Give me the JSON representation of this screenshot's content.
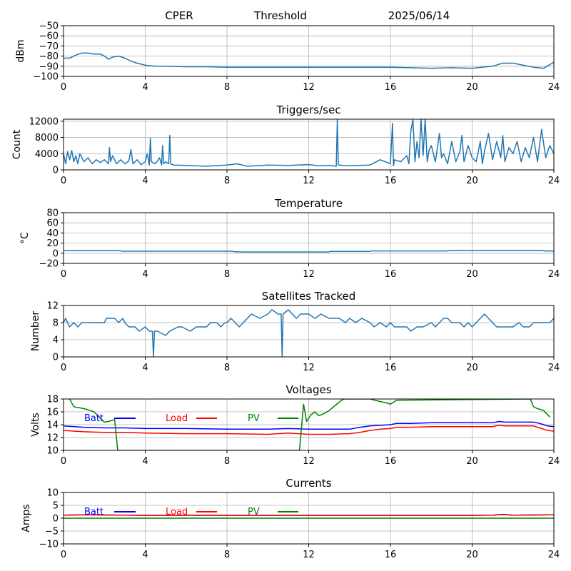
{
  "header": {
    "site": "CPER",
    "mode": "Threshold",
    "date": "2025/06/14"
  },
  "colors": {
    "series": "#1f77b4",
    "grid": "#b0b0b0",
    "batt": "#0000ff",
    "load": "#ff0000",
    "pv": "#008000"
  },
  "chart_data": [
    {
      "id": "signal",
      "type": "line",
      "title": "",
      "xlabel": "",
      "ylabel": "dBm",
      "xlim": [
        0,
        24
      ],
      "ylim": [
        -100,
        -50
      ],
      "xticks": [
        0,
        4,
        8,
        12,
        16,
        20,
        24
      ],
      "yticks": [
        -50,
        -60,
        -70,
        -80,
        -90,
        -100
      ],
      "grid": true,
      "series": [
        {
          "color": "#1f77b4",
          "x": [
            0,
            0.3,
            0.6,
            0.9,
            1.2,
            1.5,
            1.8,
            2.0,
            2.2,
            2.4,
            2.7,
            3.0,
            3.3,
            3.6,
            4.0,
            4.5,
            5,
            6,
            7,
            8,
            10,
            12,
            14,
            16,
            17,
            18,
            19,
            20,
            21,
            21.5,
            22,
            22.5,
            23,
            23.5,
            24
          ],
          "y": [
            -82,
            -82,
            -79,
            -77,
            -77,
            -78,
            -78,
            -80,
            -83,
            -81,
            -80,
            -82,
            -85,
            -87,
            -89,
            -90,
            -90,
            -90.5,
            -90.5,
            -91,
            -91,
            -91,
            -91,
            -91,
            -91.5,
            -92,
            -91.5,
            -92,
            -90,
            -87,
            -87,
            -89,
            -91,
            -92,
            -86
          ]
        }
      ]
    },
    {
      "id": "triggers",
      "type": "line",
      "title": "Triggers/sec",
      "xlabel": "",
      "ylabel": "Count",
      "xlim": [
        0,
        24
      ],
      "ylim": [
        0,
        12500
      ],
      "xticks": [
        0,
        4,
        8,
        12,
        16,
        20,
        24
      ],
      "yticks": [
        0,
        4000,
        8000,
        12000
      ],
      "grid": true,
      "series": [
        {
          "color": "#1f77b4",
          "x": [
            0,
            0.1,
            0.2,
            0.3,
            0.4,
            0.5,
            0.6,
            0.7,
            0.8,
            1.0,
            1.2,
            1.4,
            1.6,
            1.8,
            2.0,
            2.2,
            2.25,
            2.3,
            2.4,
            2.6,
            2.8,
            3.0,
            3.2,
            3.3,
            3.4,
            3.6,
            3.8,
            4.0,
            4.1,
            4.2,
            4.25,
            4.3,
            4.5,
            4.7,
            4.8,
            4.85,
            4.9,
            5.0,
            5.15,
            5.2,
            5.25,
            5.4,
            6,
            7,
            8,
            8.5,
            9,
            10,
            11,
            12,
            12.5,
            13,
            13.35,
            13.4,
            13.45,
            14,
            15,
            15.5,
            16,
            16.1,
            16.15,
            16.2,
            16.5,
            16.8,
            16.9,
            17.0,
            17.1,
            17.2,
            17.3,
            17.4,
            17.5,
            17.6,
            17.7,
            17.8,
            17.9,
            18.0,
            18.2,
            18.4,
            18.5,
            18.6,
            18.8,
            19.0,
            19.2,
            19.4,
            19.5,
            19.6,
            19.8,
            20.0,
            20.2,
            20.4,
            20.5,
            20.6,
            20.8,
            21.0,
            21.2,
            21.4,
            21.5,
            21.6,
            21.8,
            22.0,
            22.2,
            22.4,
            22.6,
            22.8,
            23.0,
            23.2,
            23.4,
            23.6,
            23.8,
            24
          ],
          "y": [
            4000,
            1500,
            4500,
            2500,
            4800,
            2000,
            3500,
            1500,
            4000,
            2000,
            3000,
            1500,
            2500,
            1800,
            2500,
            1500,
            5500,
            2000,
            3500,
            1500,
            2500,
            1500,
            2200,
            5000,
            1500,
            2500,
            1300,
            2000,
            4000,
            1200,
            7800,
            2000,
            1500,
            3000,
            1200,
            6000,
            1500,
            2000,
            1500,
            8500,
            1500,
            1200,
            1100,
            900,
            1200,
            1500,
            900,
            1200,
            1100,
            1300,
            1000,
            1100,
            900,
            12500,
            1200,
            1000,
            1200,
            2500,
            1500,
            11500,
            1000,
            2500,
            2000,
            3500,
            1500,
            9500,
            12500,
            2000,
            7000,
            3000,
            12500,
            3500,
            12500,
            2000,
            5000,
            6000,
            2000,
            9000,
            3000,
            4000,
            1500,
            7000,
            2000,
            4500,
            8500,
            2000,
            6000,
            3000,
            2000,
            7000,
            1500,
            4500,
            9000,
            2500,
            7000,
            3000,
            8500,
            2000,
            5500,
            4000,
            7000,
            2000,
            5500,
            3000,
            8000,
            2000,
            10000,
            3000,
            6000,
            4000
          ]
        }
      ]
    },
    {
      "id": "temperature",
      "type": "line",
      "title": "Temperature",
      "xlabel": "",
      "ylabel": "°C",
      "xlim": [
        0,
        24
      ],
      "ylim": [
        -20,
        80
      ],
      "xticks": [
        0,
        4,
        8,
        12,
        16,
        20,
        24
      ],
      "yticks": [
        -20,
        0,
        20,
        40,
        60,
        80
      ],
      "grid": true,
      "series": [
        {
          "color": "#1f77b4",
          "x": [
            0,
            2.8,
            2.85,
            8.3,
            8.35,
            8.6,
            8.65,
            13.0,
            13.05,
            15.0,
            15.05,
            18.8,
            18.85,
            23.5,
            23.55,
            24
          ],
          "y": [
            5,
            5,
            4,
            4,
            3,
            3,
            2.5,
            2.5,
            3.5,
            3.5,
            4.5,
            4.5,
            5.5,
            5.5,
            4.5,
            4.5
          ]
        }
      ]
    },
    {
      "id": "satellites",
      "type": "line",
      "title": "Satellites Tracked",
      "xlabel": "",
      "ylabel": "Number",
      "xlim": [
        0,
        24
      ],
      "ylim": [
        0,
        12
      ],
      "xticks": [
        0,
        4,
        8,
        12,
        16,
        20,
        24
      ],
      "yticks": [
        0,
        4,
        8,
        12
      ],
      "grid": true,
      "series": [
        {
          "color": "#1f77b4",
          "x": [
            0,
            0.1,
            0.2,
            0.3,
            0.5,
            0.7,
            0.9,
            1.2,
            2.0,
            2.1,
            2.5,
            2.7,
            2.9,
            3.0,
            3.2,
            3.5,
            3.7,
            4.0,
            4.2,
            4.35,
            4.4,
            4.45,
            4.6,
            5.0,
            5.2,
            5.6,
            5.8,
            6.2,
            6.5,
            6.8,
            7.0,
            7.2,
            7.5,
            7.7,
            7.9,
            8.0,
            8.2,
            8.4,
            8.6,
            8.8,
            9.0,
            9.2,
            9.6,
            10.0,
            10.2,
            10.5,
            10.65,
            10.7,
            10.75,
            11.0,
            11.2,
            11.4,
            11.6,
            12.0,
            12.3,
            12.6,
            13.0,
            13.5,
            13.8,
            14.0,
            14.3,
            14.6,
            15.0,
            15.2,
            15.5,
            15.8,
            16.0,
            16.2,
            16.6,
            16.8,
            17.0,
            17.3,
            17.6,
            18.0,
            18.2,
            18.4,
            18.6,
            18.8,
            19.0,
            19.2,
            19.4,
            19.6,
            19.8,
            20.0,
            20.2,
            20.4,
            20.6,
            20.8,
            21.0,
            21.2,
            21.5,
            22.0,
            22.3,
            22.5,
            22.8,
            23.0,
            23.2,
            23.5,
            23.8,
            24
          ],
          "y": [
            8,
            9,
            8,
            7,
            8,
            7,
            8,
            8,
            8,
            9,
            9,
            8,
            9,
            8,
            7,
            7,
            6,
            7,
            6,
            6,
            0,
            6,
            6,
            5,
            6,
            7,
            7,
            6,
            7,
            7,
            7,
            8,
            8,
            7,
            8,
            8,
            9,
            8,
            7,
            8,
            9,
            10,
            9,
            10,
            11,
            10,
            10,
            0,
            10,
            11,
            10,
            9,
            10,
            10,
            9,
            10,
            9,
            9,
            8,
            9,
            8,
            9,
            8,
            7,
            8,
            7,
            8,
            7,
            7,
            7,
            6,
            7,
            7,
            8,
            7,
            8,
            9,
            9,
            8,
            8,
            8,
            7,
            8,
            7,
            8,
            9,
            10,
            9,
            8,
            7,
            7,
            7,
            8,
            7,
            7,
            8,
            8,
            8,
            8,
            9
          ]
        }
      ]
    },
    {
      "id": "voltages",
      "type": "line",
      "title": "Voltages",
      "xlabel": "",
      "ylabel": "Volts",
      "xlim": [
        0,
        24
      ],
      "ylim": [
        10,
        18
      ],
      "xticks": [
        0,
        4,
        8,
        12,
        16,
        20,
        24
      ],
      "yticks": [
        10,
        12,
        14,
        16,
        18
      ],
      "grid": true,
      "legend": [
        "Batt",
        "Load",
        "PV"
      ],
      "series": [
        {
          "name": "Batt",
          "color": "#0000ff",
          "x": [
            0,
            1,
            2,
            3,
            4,
            6,
            8,
            10,
            11,
            12,
            13,
            14,
            14.5,
            15,
            15.5,
            16,
            16.3,
            17,
            18,
            20,
            21,
            21.3,
            21.6,
            22,
            22.5,
            23,
            23.3,
            23.7,
            24
          ],
          "y": [
            13.8,
            13.6,
            13.5,
            13.5,
            13.4,
            13.4,
            13.3,
            13.3,
            13.4,
            13.3,
            13.3,
            13.3,
            13.6,
            13.8,
            13.9,
            14.0,
            14.2,
            14.2,
            14.3,
            14.3,
            14.3,
            14.5,
            14.4,
            14.4,
            14.4,
            14.4,
            14.2,
            13.8,
            13.7
          ]
        },
        {
          "name": "Load",
          "color": "#ff0000",
          "x": [
            0,
            1,
            2,
            3,
            4,
            6,
            8,
            10,
            11,
            12,
            13,
            14,
            14.5,
            15,
            15.5,
            16,
            16.3,
            17,
            18,
            20,
            21,
            21.3,
            21.6,
            22,
            22.5,
            23,
            23.3,
            23.7,
            24
          ],
          "y": [
            13.1,
            12.9,
            12.8,
            12.8,
            12.7,
            12.6,
            12.6,
            12.5,
            12.7,
            12.5,
            12.5,
            12.6,
            12.8,
            13.1,
            13.3,
            13.4,
            13.6,
            13.6,
            13.7,
            13.7,
            13.7,
            13.9,
            13.8,
            13.8,
            13.8,
            13.8,
            13.5,
            13.1,
            13.0
          ]
        },
        {
          "name": "PV",
          "color": "#008000",
          "x": [
            0.3,
            0.5,
            1.0,
            1.5,
            1.8,
            2.0,
            2.2,
            2.5,
            2.65,
            11.55,
            11.75,
            11.9,
            12.1,
            12.3,
            12.5,
            12.8,
            13.0,
            13.3,
            13.6,
            13.75,
            15.0,
            15.5,
            15.8,
            16.0,
            16.3,
            22.85,
            23.0,
            23.2,
            23.5,
            23.8
          ],
          "y": [
            18,
            16.8,
            16.5,
            16.0,
            15.0,
            14.4,
            14.5,
            14.8,
            10,
            10,
            17.2,
            14.5,
            15.5,
            16.0,
            15.4,
            15.8,
            16.2,
            17.0,
            17.8,
            18,
            18,
            17.6,
            17.4,
            17.2,
            17.8,
            18,
            16.8,
            16.5,
            16.2,
            15.2
          ]
        }
      ]
    },
    {
      "id": "currents",
      "type": "line",
      "title": "Currents",
      "xlabel": "",
      "ylabel": "Amps",
      "xlim": [
        0,
        24
      ],
      "ylim": [
        -10,
        10
      ],
      "xticks": [
        0,
        4,
        8,
        12,
        16,
        20,
        24
      ],
      "yticks": [
        -10,
        -5,
        0,
        5,
        10
      ],
      "grid": true,
      "legend": [
        "Batt",
        "Load",
        "PV"
      ],
      "series": [
        {
          "name": "Batt",
          "color": "#0000ff",
          "x": [
            0,
            1,
            4,
            8,
            12,
            16,
            20,
            21,
            21.5,
            22,
            24
          ],
          "y": [
            1.2,
            1.3,
            1.1,
            1.1,
            1.1,
            1.1,
            1.1,
            1.2,
            1.5,
            1.2,
            1.3
          ]
        },
        {
          "name": "Load",
          "color": "#ff0000",
          "x": [
            0,
            1,
            4,
            8,
            12,
            16,
            20,
            21,
            21.5,
            22,
            24
          ],
          "y": [
            1.2,
            1.3,
            1.1,
            1.1,
            1.1,
            1.1,
            1.1,
            1.2,
            1.4,
            1.2,
            1.3
          ]
        },
        {
          "name": "PV",
          "color": "#008000",
          "x": [
            0,
            24
          ],
          "y": [
            0,
            0
          ]
        }
      ]
    }
  ]
}
